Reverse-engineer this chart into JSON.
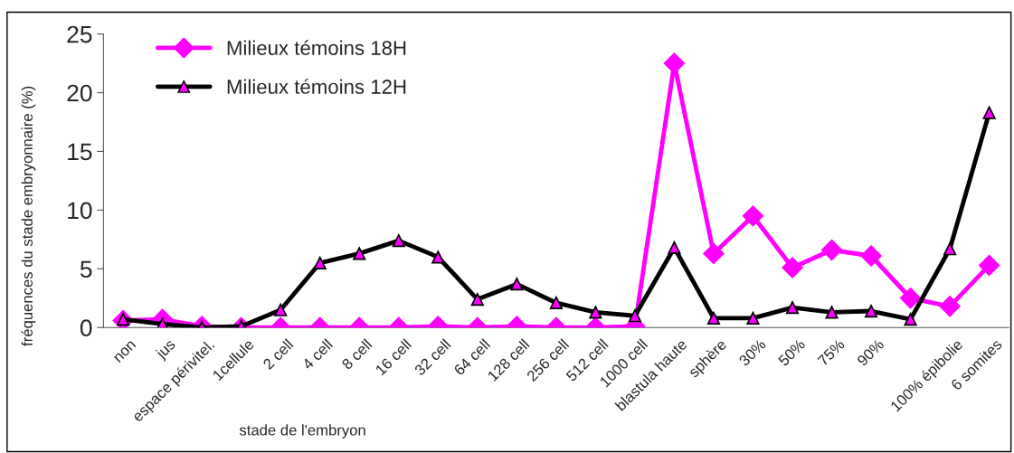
{
  "chart_data": {
    "type": "line",
    "categories": [
      "non",
      "jus",
      "espace périvitel.",
      "1cellule",
      "2 cell",
      "4 cell",
      "8 cell",
      "16 cell",
      "32 cell",
      "64 cell",
      "128 cell",
      "256 cell",
      "512 cell",
      "1000 cell",
      "blastula haute",
      "sphère",
      "30%",
      "50%",
      "75%",
      "90%",
      null,
      "100% épibolie",
      "6 somites"
    ],
    "series": [
      {
        "name": "Milieux témoins 18H",
        "color": "#ff00ff",
        "marker": "diamond",
        "values": [
          0.6,
          0.7,
          0.1,
          0,
          0,
          0,
          0,
          0,
          0.1,
          0,
          0.1,
          0,
          0,
          0.1,
          22.5,
          6.3,
          9.5,
          5.1,
          6.6,
          6.1,
          2.5,
          1.8,
          5.3
        ]
      },
      {
        "name": "Milieux témoins 12H",
        "color": "#000000",
        "marker": "triangle",
        "values": [
          0.7,
          0.3,
          0,
          0.1,
          1.5,
          5.5,
          6.3,
          7.4,
          6.0,
          2.4,
          3.7,
          2.1,
          1.3,
          1.0,
          6.8,
          0.8,
          0.8,
          1.7,
          1.3,
          1.4,
          0.7,
          6.7,
          18.3
        ]
      }
    ],
    "xlabel": "stade de l'embryon",
    "ylabel": "fréquences du stade embryonnaire (%)",
    "ylim": [
      0,
      25
    ],
    "yticks": [
      0,
      5,
      10,
      15,
      20,
      25
    ],
    "grid": false,
    "legend": "top left",
    "line_style": "solid"
  }
}
